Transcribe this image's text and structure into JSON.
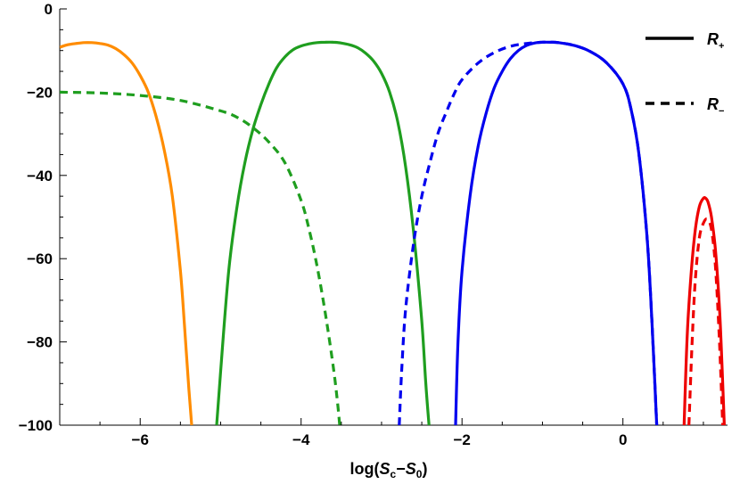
{
  "chart_data": {
    "type": "line",
    "title": "",
    "xlabel": {
      "pre": "log(",
      "s1": "S",
      "sub1": "c",
      "op": "−",
      "s2": "S",
      "sub2": "0",
      "post": ")"
    },
    "ylabel": "",
    "xlim": [
      -7,
      1.3
    ],
    "ylim": [
      -100,
      0
    ],
    "x_ticks": [
      -6,
      -4,
      -2,
      0
    ],
    "x_tick_labels": [
      "−6",
      "−4",
      "−2",
      "0"
    ],
    "y_ticks": [
      0,
      -20,
      -40,
      -60,
      -80,
      -100
    ],
    "y_tick_labels": [
      "0",
      "−20",
      "−40",
      "−60",
      "−80",
      "−100"
    ],
    "grid": false,
    "legend_position": "top-right",
    "legend": [
      {
        "base": "R",
        "sub": "+",
        "style": "solid"
      },
      {
        "base": "R",
        "sub": "−",
        "style": "dashed"
      }
    ],
    "series": [
      {
        "color": "#ff8c00",
        "style": "solid",
        "x": [
          -7.0,
          -6.9,
          -6.8,
          -6.7,
          -6.6,
          -6.5,
          -6.4,
          -6.3,
          -6.2,
          -6.1,
          -6.0,
          -5.9,
          -5.8,
          -5.7,
          -5.6,
          -5.5,
          -5.45,
          -5.4,
          -5.36
        ],
        "y": [
          -9.2,
          -8.6,
          -8.3,
          -8.1,
          -8.1,
          -8.3,
          -8.7,
          -9.6,
          -11.0,
          -13.0,
          -16.0,
          -20.0,
          -26.0,
          -34.0,
          -45.0,
          -63.0,
          -76.0,
          -90.0,
          -100.0
        ]
      },
      {
        "color": "#1f9e1f",
        "style": "solid",
        "x": [
          -5.05,
          -5.0,
          -4.9,
          -4.8,
          -4.7,
          -4.6,
          -4.5,
          -4.4,
          -4.3,
          -4.2,
          -4.1,
          -4.0,
          -3.9,
          -3.8,
          -3.7,
          -3.6,
          -3.5,
          -3.4,
          -3.3,
          -3.2,
          -3.1,
          -3.0,
          -2.9,
          -2.8,
          -2.7,
          -2.6,
          -2.5,
          -2.45,
          -2.41
        ],
        "y": [
          -100.0,
          -87.0,
          -63.0,
          -48.0,
          -37.0,
          -29.0,
          -23.0,
          -18.0,
          -14.0,
          -11.5,
          -9.8,
          -8.9,
          -8.4,
          -8.1,
          -8.0,
          -8.0,
          -8.2,
          -8.6,
          -9.3,
          -10.6,
          -12.5,
          -15.5,
          -20.0,
          -27.0,
          -38.0,
          -54.0,
          -75.0,
          -90.0,
          -100.0
        ]
      },
      {
        "color": "#1f9e1f",
        "style": "dashed",
        "x": [
          -7.0,
          -6.5,
          -6.0,
          -5.5,
          -5.0,
          -4.8,
          -4.6,
          -4.4,
          -4.2,
          -4.0,
          -3.9,
          -3.8,
          -3.7,
          -3.6,
          -3.55,
          -3.52
        ],
        "y": [
          -20.0,
          -20.2,
          -20.8,
          -22.0,
          -24.5,
          -26.0,
          -28.5,
          -32.0,
          -37.0,
          -46.0,
          -53.0,
          -62.0,
          -73.0,
          -86.0,
          -94.0,
          -100.0
        ]
      },
      {
        "color": "#0000ee",
        "style": "dashed",
        "x": [
          -2.78,
          -2.75,
          -2.7,
          -2.6,
          -2.5,
          -2.4,
          -2.3,
          -2.2,
          -2.1,
          -2.0,
          -1.8,
          -1.6,
          -1.4,
          -1.2,
          -1.0,
          -0.9,
          -0.8,
          -0.6,
          -0.4,
          -0.2,
          0.0,
          0.1,
          0.2,
          0.3,
          0.36,
          0.42
        ],
        "y": [
          -100.0,
          -87.0,
          -72.0,
          -56.0,
          -45.0,
          -37.0,
          -30.0,
          -25.0,
          -20.5,
          -17.0,
          -13.0,
          -10.5,
          -9.0,
          -8.3,
          -8.0,
          -8.0,
          -8.1,
          -8.8,
          -10.3,
          -13.0,
          -18.0,
          -24.0,
          -35.0,
          -55.0,
          -75.0,
          -100.0
        ]
      },
      {
        "color": "#0000ee",
        "style": "solid",
        "x": [
          -2.08,
          -2.05,
          -2.0,
          -1.9,
          -1.8,
          -1.7,
          -1.6,
          -1.5,
          -1.4,
          -1.3,
          -1.2,
          -1.1,
          -1.0,
          -0.9,
          -0.8,
          -0.6,
          -0.4,
          -0.2,
          0.0,
          0.1,
          0.2,
          0.3,
          0.36,
          0.42
        ],
        "y": [
          -100.0,
          -80.0,
          -63.0,
          -45.0,
          -33.0,
          -25.0,
          -19.0,
          -15.0,
          -12.0,
          -10.0,
          -8.8,
          -8.2,
          -8.0,
          -8.0,
          -8.1,
          -8.8,
          -10.3,
          -13.0,
          -18.0,
          -24.0,
          -35.0,
          -55.0,
          -75.0,
          -100.0
        ]
      },
      {
        "color": "#ee0000",
        "style": "solid",
        "x": [
          0.76,
          0.8,
          0.85,
          0.9,
          0.95,
          1.0,
          1.03,
          1.06,
          1.1,
          1.15,
          1.2,
          1.23,
          1.26
        ],
        "y": [
          -100.0,
          -78.0,
          -63.0,
          -53.0,
          -47.5,
          -45.5,
          -45.5,
          -46.5,
          -50.0,
          -58.0,
          -72.0,
          -85.0,
          -100.0
        ]
      },
      {
        "color": "#ee0000",
        "style": "dashed",
        "x": [
          0.82,
          0.86,
          0.9,
          0.95,
          1.0,
          1.05,
          1.1,
          1.15,
          1.2,
          1.24
        ],
        "y": [
          -100.0,
          -80.0,
          -65.0,
          -55.0,
          -51.5,
          -50.5,
          -53.0,
          -62.0,
          -80.0,
          -100.0
        ]
      }
    ]
  }
}
